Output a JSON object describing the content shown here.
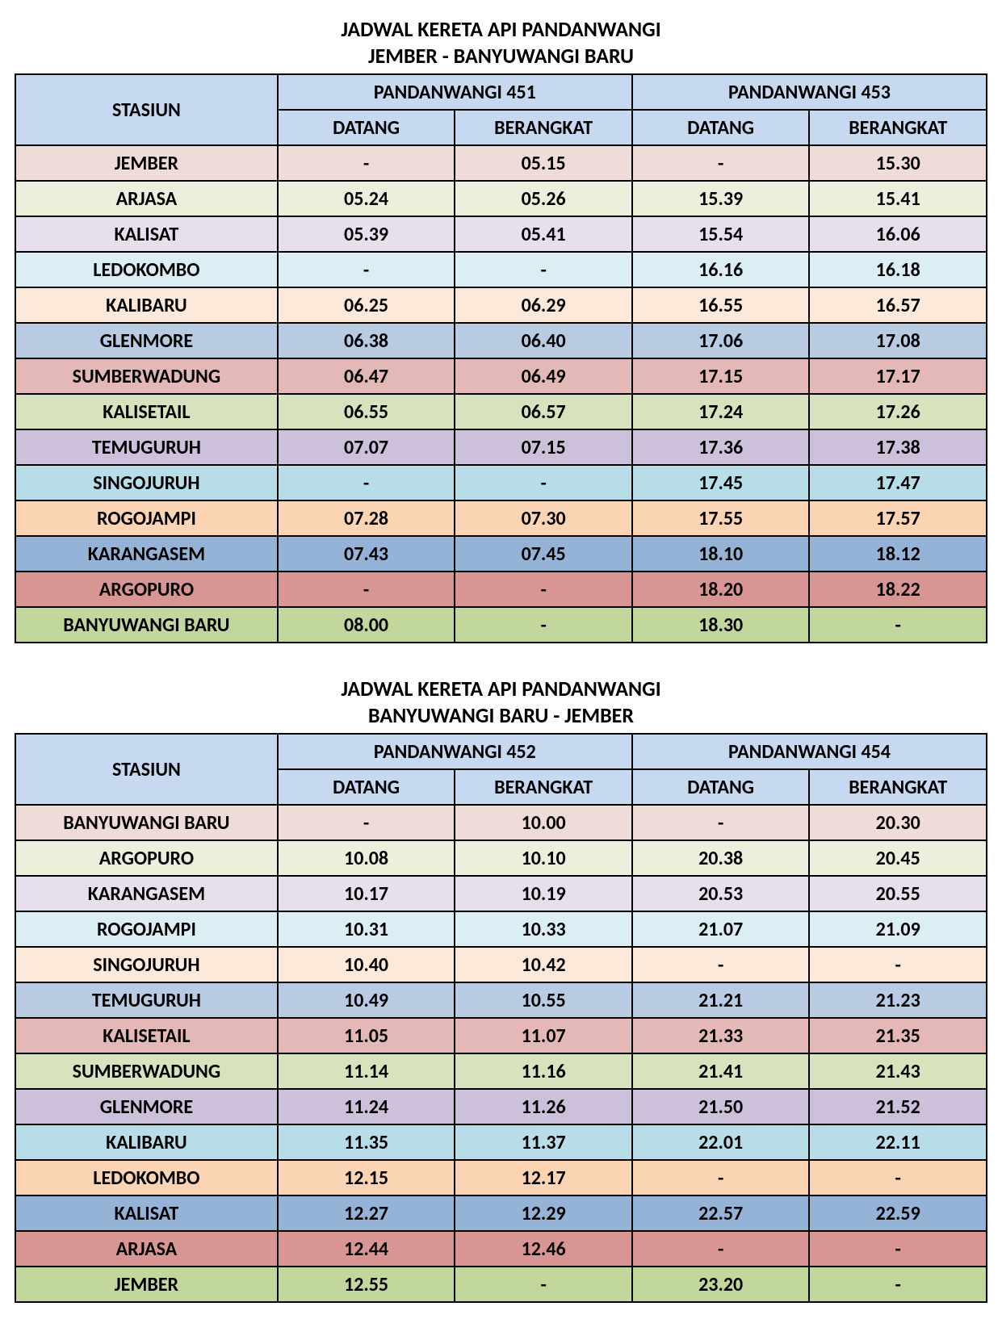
{
  "colors": {
    "header_bg": "#c6d9f1",
    "row_colors": [
      "#efdcd9",
      "#ebf0dd",
      "#e5e0eb",
      "#dbeef3",
      "#fde9da",
      "#b8cbe3",
      "#e5b8b8",
      "#d6e3bc",
      "#ccc0da",
      "#b6dde8",
      "#fbd4b3",
      "#95b3d6",
      "#d99593",
      "#c2d79c"
    ]
  },
  "table1": {
    "title1": "JADWAL KERETA API PANDANWANGI",
    "title2": "JEMBER - BANYUWANGI BARU",
    "header_station": "STASIUN",
    "train1": "PANDANWANGI 451",
    "train2": "PANDANWANGI 453",
    "sub_arrive": "DATANG",
    "sub_depart": "BERANGKAT",
    "rows": [
      {
        "station": "JEMBER",
        "c": [
          "-",
          "05.15",
          "-",
          "15.30"
        ]
      },
      {
        "station": "ARJASA",
        "c": [
          "05.24",
          "05.26",
          "15.39",
          "15.41"
        ]
      },
      {
        "station": "KALISAT",
        "c": [
          "05.39",
          "05.41",
          "15.54",
          "16.06"
        ]
      },
      {
        "station": "LEDOKOMBO",
        "c": [
          "-",
          "-",
          "16.16",
          "16.18"
        ]
      },
      {
        "station": "KALIBARU",
        "c": [
          "06.25",
          "06.29",
          "16.55",
          "16.57"
        ]
      },
      {
        "station": "GLENMORE",
        "c": [
          "06.38",
          "06.40",
          "17.06",
          "17.08"
        ]
      },
      {
        "station": "SUMBERWADUNG",
        "c": [
          "06.47",
          "06.49",
          "17.15",
          "17.17"
        ]
      },
      {
        "station": "KALISETAIL",
        "c": [
          "06.55",
          "06.57",
          "17.24",
          "17.26"
        ]
      },
      {
        "station": "TEMUGURUH",
        "c": [
          "07.07",
          "07.15",
          "17.36",
          "17.38"
        ]
      },
      {
        "station": "SINGOJURUH",
        "c": [
          "-",
          "-",
          "17.45",
          "17.47"
        ]
      },
      {
        "station": "ROGOJAMPI",
        "c": [
          "07.28",
          "07.30",
          "17.55",
          "17.57"
        ]
      },
      {
        "station": "KARANGASEM",
        "c": [
          "07.43",
          "07.45",
          "18.10",
          "18.12"
        ]
      },
      {
        "station": "ARGOPURO",
        "c": [
          "-",
          "-",
          "18.20",
          "18.22"
        ]
      },
      {
        "station": "BANYUWANGI BARU",
        "c": [
          "08.00",
          "-",
          "18.30",
          "-"
        ]
      }
    ]
  },
  "table2": {
    "title1": "JADWAL KERETA API PANDANWANGI",
    "title2": "BANYUWANGI BARU - JEMBER",
    "header_station": "STASIUN",
    "train1": "PANDANWANGI 452",
    "train2": "PANDANWANGI 454",
    "sub_arrive": "DATANG",
    "sub_depart": "BERANGKAT",
    "rows": [
      {
        "station": "BANYUWANGI BARU",
        "c": [
          "-",
          "10.00",
          "-",
          "20.30"
        ]
      },
      {
        "station": "ARGOPURO",
        "c": [
          "10.08",
          "10.10",
          "20.38",
          "20.45"
        ]
      },
      {
        "station": "KARANGASEM",
        "c": [
          "10.17",
          "10.19",
          "20.53",
          "20.55"
        ]
      },
      {
        "station": "ROGOJAMPI",
        "c": [
          "10.31",
          "10.33",
          "21.07",
          "21.09"
        ]
      },
      {
        "station": "SINGOJURUH",
        "c": [
          "10.40",
          "10.42",
          "-",
          "-"
        ]
      },
      {
        "station": "TEMUGURUH",
        "c": [
          "10.49",
          "10.55",
          "21.21",
          "21.23"
        ]
      },
      {
        "station": "KALISETAIL",
        "c": [
          "11.05",
          "11.07",
          "21.33",
          "21.35"
        ]
      },
      {
        "station": "SUMBERWADUNG",
        "c": [
          "11.14",
          "11.16",
          "21.41",
          "21.43"
        ]
      },
      {
        "station": "GLENMORE",
        "c": [
          "11.24",
          "11.26",
          "21.50",
          "21.52"
        ]
      },
      {
        "station": "KALIBARU",
        "c": [
          "11.35",
          "11.37",
          "22.01",
          "22.11"
        ]
      },
      {
        "station": "LEDOKOMBO",
        "c": [
          "12.15",
          "12.17",
          "-",
          "-"
        ]
      },
      {
        "station": "KALISAT",
        "c": [
          "12.27",
          "12.29",
          "22.57",
          "22.59"
        ]
      },
      {
        "station": "ARJASA",
        "c": [
          "12.44",
          "12.46",
          "-",
          "-"
        ]
      },
      {
        "station": "JEMBER",
        "c": [
          "12.55",
          "-",
          "23.20",
          "-"
        ]
      }
    ]
  }
}
